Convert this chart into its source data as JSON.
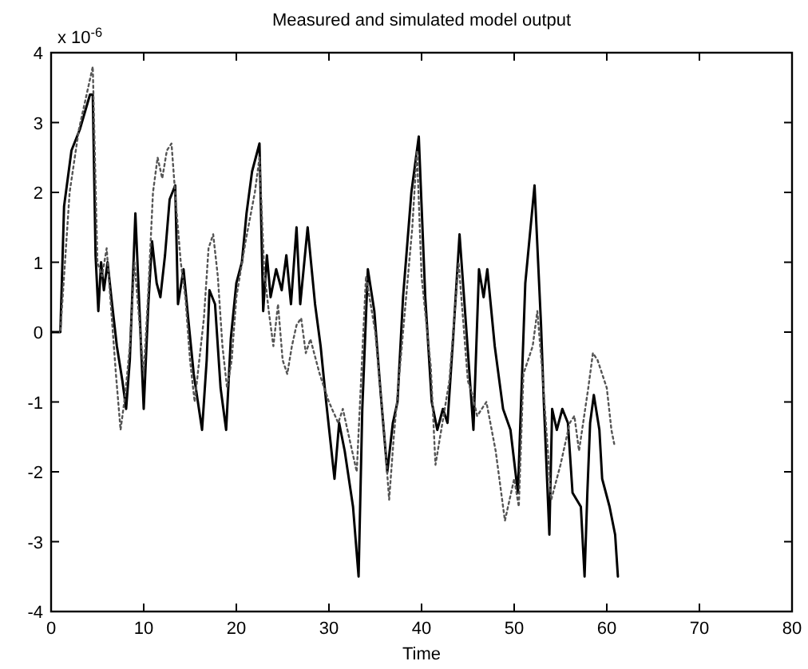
{
  "chart_data": {
    "type": "line",
    "title": "Measured and simulated model output",
    "xlabel": "Time",
    "annotations": [
      "x 10$^{-6}$"
    ],
    "xlim": [
      0,
      80
    ],
    "xticks": [
      0,
      10,
      20,
      30,
      40,
      50,
      60,
      70,
      80
    ],
    "ylim": [
      -4,
      4
    ],
    "yticks": [
      -4,
      -3,
      -2,
      -1,
      0,
      1,
      2,
      3,
      4
    ],
    "grid": false,
    "marker": "none",
    "series": [
      {
        "color": "#000000",
        "line_style": "solid",
        "x": [
          0,
          1,
          1.4,
          2.2,
          3.1,
          4.2,
          4.5,
          4.8,
          5.1,
          5.4,
          5.7,
          6.1,
          6.5,
          7.1,
          7.7,
          8.1,
          8.5,
          9.1,
          10,
          10.5,
          10.9,
          11.4,
          11.8,
          12.3,
          12.8,
          13.4,
          13.7,
          14.3,
          14.8,
          15.4,
          16.3,
          16.8,
          17.1,
          17.7,
          18.3,
          18.9,
          19.4,
          20,
          20.6,
          21.1,
          21.7,
          22.5,
          22.9,
          23.3,
          23.7,
          24.3,
          24.9,
          25.4,
          25.9,
          26.5,
          26.9,
          27.7,
          28.5,
          29.1,
          29.7,
          30.6,
          31.1,
          31.7,
          32.6,
          33.2,
          33.6,
          34.2,
          34.9,
          35.6,
          36.3,
          36.9,
          37.4,
          38,
          38.9,
          39.7,
          40.4,
          41.1,
          41.7,
          42.3,
          42.8,
          43.4,
          44.1,
          44.8,
          45.6,
          46.2,
          46.7,
          47.1,
          47.9,
          48.8,
          49.6,
          50.4,
          51.2,
          52.2,
          52.9,
          53.2,
          53.8,
          54.1,
          54.6,
          55.2,
          55.8,
          56.3,
          57.2,
          57.6,
          57.9,
          58.2,
          58.6,
          59.2,
          59.5,
          60.3,
          60.9,
          61.2
        ],
        "values": [
          0,
          0,
          1.8,
          2.6,
          2.9,
          3.4,
          3.4,
          1.1,
          0.3,
          1.0,
          0.6,
          1.0,
          0.5,
          -0.2,
          -0.7,
          -1.1,
          -0.4,
          1.7,
          -1.1,
          0.4,
          1.3,
          0.7,
          0.5,
          1.1,
          1.9,
          2.1,
          0.4,
          0.9,
          0.2,
          -0.6,
          -1.4,
          -0.4,
          0.6,
          0.4,
          -0.8,
          -1.4,
          -0.1,
          0.7,
          1.0,
          1.7,
          2.3,
          2.7,
          0.3,
          1.1,
          0.5,
          0.9,
          0.6,
          1.1,
          0.4,
          1.5,
          0.4,
          1.5,
          0.4,
          -0.2,
          -1.0,
          -2.1,
          -1.3,
          -1.7,
          -2.5,
          -3.5,
          -1.1,
          0.9,
          0.3,
          -0.9,
          -2.0,
          -1.3,
          -1.0,
          0.5,
          2.0,
          2.8,
          0.5,
          -1.0,
          -1.4,
          -1.1,
          -1.3,
          -0.1,
          1.4,
          0.1,
          -1.4,
          0.9,
          0.5,
          0.9,
          -0.2,
          -1.1,
          -1.4,
          -2.3,
          0.7,
          2.1,
          0.1,
          -1.0,
          -2.9,
          -1.1,
          -1.4,
          -1.1,
          -1.3,
          -2.3,
          -2.5,
          -3.5,
          -2.3,
          -1.3,
          -0.9,
          -1.4,
          -2.1,
          -2.5,
          -2.9,
          -3.5
        ]
      },
      {
        "color": "#555555",
        "line_style": "dotted",
        "x": [
          0,
          1,
          2,
          3,
          4,
          4.5,
          5,
          5.5,
          6,
          6.5,
          7,
          7.5,
          8,
          8.5,
          9,
          9.5,
          10,
          10.5,
          11,
          11.5,
          12,
          12.5,
          13,
          13.5,
          14,
          14.5,
          15,
          15.5,
          16,
          16.5,
          17,
          17.5,
          18,
          18.5,
          19,
          19.5,
          20,
          21,
          22,
          22.5,
          23,
          23.5,
          24,
          24.5,
          25,
          25.5,
          26,
          26.5,
          27,
          27.5,
          28,
          29,
          30,
          31,
          31.5,
          32,
          33,
          34,
          35,
          36,
          36.5,
          37,
          38,
          39,
          39.5,
          40,
          41,
          41.5,
          42,
          43,
          44,
          45,
          45.5,
          46,
          47,
          48,
          48.5,
          49,
          50,
          50.5,
          51,
          52,
          52.5,
          53,
          54,
          55,
          56,
          56.5,
          57,
          58,
          58.5,
          59,
          59.5,
          60,
          60.5,
          60.8
        ],
        "values": [
          0,
          0,
          2.0,
          2.9,
          3.5,
          3.8,
          1.0,
          0.8,
          1.2,
          0.3,
          -0.6,
          -1.4,
          -0.9,
          -0.2,
          1.0,
          0.2,
          -0.6,
          0.6,
          2.0,
          2.5,
          2.2,
          2.6,
          2.7,
          1.8,
          1.0,
          0.5,
          -0.4,
          -1.0,
          -0.4,
          0.2,
          1.2,
          1.4,
          0.8,
          -0.2,
          -0.8,
          -0.4,
          0.5,
          1.3,
          2.0,
          2.5,
          0.9,
          0.3,
          -0.2,
          0.4,
          -0.4,
          -0.6,
          -0.2,
          0.1,
          0.2,
          -0.3,
          -0.1,
          -0.6,
          -1.0,
          -1.3,
          -1.1,
          -1.4,
          -2.0,
          0.8,
          0.0,
          -1.5,
          -2.4,
          -1.5,
          0.0,
          1.5,
          2.6,
          0.8,
          -0.5,
          -1.9,
          -1.5,
          -0.7,
          1.0,
          -0.7,
          -0.9,
          -1.2,
          -1.0,
          -1.7,
          -2.2,
          -2.7,
          -2.1,
          -2.5,
          -0.6,
          -0.2,
          0.3,
          -0.5,
          -2.4,
          -1.9,
          -1.3,
          -1.2,
          -1.7,
          -0.8,
          -0.3,
          -0.4,
          -0.6,
          -0.8,
          -1.4,
          -1.6
        ]
      }
    ]
  }
}
